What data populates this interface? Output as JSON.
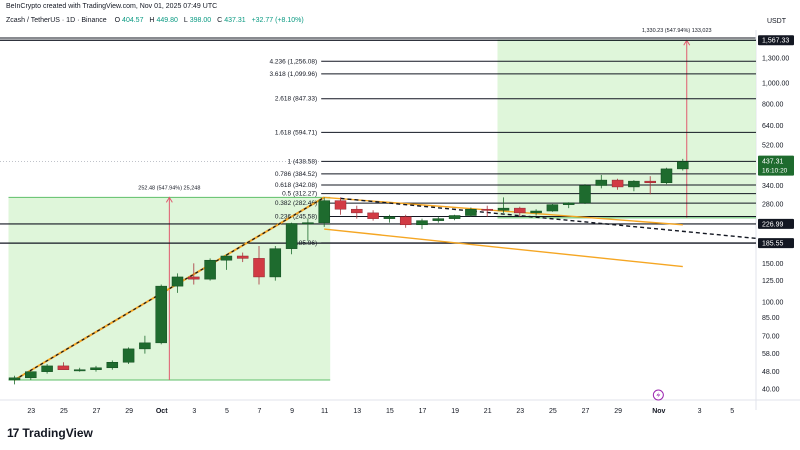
{
  "header": {
    "credit": "BeInCrypto created with TradingView.com, Nov 01, 2025 07:49 UTC",
    "symbol": "Zcash / TetherUS · 1D · Binance",
    "open_label": "O",
    "open": "404.57",
    "high_label": "H",
    "high": "449.80",
    "low_label": "L",
    "low": "398.00",
    "close_label": "C",
    "close": "437.31",
    "change": "+32.77 (+8.10%)"
  },
  "currency": "USDT",
  "branding": {
    "logo": "17",
    "name": "TradingView"
  },
  "colors": {
    "up": "#1e6b2e",
    "down": "#d23a44",
    "zone": "#d9f5d3",
    "trend_orange": "#f5a623",
    "measure": "#e05a6e",
    "fib_line": "#131722"
  },
  "chart_data": {
    "type": "candlestick",
    "scale": "log",
    "ylim": [
      38,
      1700
    ],
    "x_dates_start": "2025-09-22",
    "x_ticks": [
      "23",
      "25",
      "27",
      "29",
      "Oct",
      "3",
      "5",
      "7",
      "9",
      "11",
      "13",
      "15",
      "17",
      "19",
      "21",
      "23",
      "25",
      "27",
      "29",
      "Nov",
      "3",
      "5"
    ],
    "y_ticks": [
      "1,300.00",
      "1,000.00",
      "800.00",
      "640.00",
      "520.00",
      "340.00",
      "280.00",
      "150.00",
      "125.00",
      "100.00",
      "85.00",
      "70.00",
      "58.00",
      "48.00",
      "40.00"
    ],
    "candles": [
      {
        "o": 44,
        "h": 46,
        "l": 42,
        "c": 45
      },
      {
        "o": 45,
        "h": 48,
        "l": 44,
        "c": 48
      },
      {
        "o": 48,
        "h": 52,
        "l": 47,
        "c": 51
      },
      {
        "o": 51,
        "h": 53,
        "l": 49,
        "c": 49
      },
      {
        "o": 49,
        "h": 50,
        "l": 48,
        "c": 49
      },
      {
        "o": 49,
        "h": 51,
        "l": 48,
        "c": 50
      },
      {
        "o": 50,
        "h": 54,
        "l": 49,
        "c": 53
      },
      {
        "o": 53,
        "h": 62,
        "l": 52,
        "c": 61
      },
      {
        "o": 61,
        "h": 70,
        "l": 58,
        "c": 65
      },
      {
        "o": 65,
        "h": 120,
        "l": 64,
        "c": 118
      },
      {
        "o": 118,
        "h": 135,
        "l": 110,
        "c": 130
      },
      {
        "o": 130,
        "h": 150,
        "l": 120,
        "c": 127
      },
      {
        "o": 127,
        "h": 158,
        "l": 125,
        "c": 155
      },
      {
        "o": 155,
        "h": 165,
        "l": 140,
        "c": 162
      },
      {
        "o": 162,
        "h": 168,
        "l": 152,
        "c": 158
      },
      {
        "o": 158,
        "h": 180,
        "l": 120,
        "c": 130
      },
      {
        "o": 130,
        "h": 180,
        "l": 125,
        "c": 175
      },
      {
        "o": 175,
        "h": 230,
        "l": 165,
        "c": 228
      },
      {
        "o": 228,
        "h": 240,
        "l": 190,
        "c": 230
      },
      {
        "o": 230,
        "h": 300,
        "l": 220,
        "c": 290
      },
      {
        "o": 290,
        "h": 300,
        "l": 250,
        "c": 265
      },
      {
        "o": 265,
        "h": 275,
        "l": 240,
        "c": 255
      },
      {
        "o": 255,
        "h": 262,
        "l": 235,
        "c": 240
      },
      {
        "o": 240,
        "h": 250,
        "l": 230,
        "c": 245
      },
      {
        "o": 245,
        "h": 250,
        "l": 218,
        "c": 225
      },
      {
        "o": 225,
        "h": 240,
        "l": 215,
        "c": 235
      },
      {
        "o": 235,
        "h": 245,
        "l": 230,
        "c": 240
      },
      {
        "o": 240,
        "h": 250,
        "l": 236,
        "c": 248
      },
      {
        "o": 248,
        "h": 270,
        "l": 245,
        "c": 265
      },
      {
        "o": 265,
        "h": 275,
        "l": 245,
        "c": 262
      },
      {
        "o": 262,
        "h": 300,
        "l": 255,
        "c": 268
      },
      {
        "o": 268,
        "h": 272,
        "l": 245,
        "c": 255
      },
      {
        "o": 255,
        "h": 265,
        "l": 248,
        "c": 260
      },
      {
        "o": 260,
        "h": 280,
        "l": 258,
        "c": 278
      },
      {
        "o": 278,
        "h": 285,
        "l": 268,
        "c": 283
      },
      {
        "o": 283,
        "h": 345,
        "l": 280,
        "c": 340
      },
      {
        "o": 340,
        "h": 380,
        "l": 330,
        "c": 360
      },
      {
        "o": 360,
        "h": 365,
        "l": 325,
        "c": 335
      },
      {
        "o": 335,
        "h": 360,
        "l": 320,
        "c": 356
      },
      {
        "o": 356,
        "h": 375,
        "l": 310,
        "c": 350
      },
      {
        "o": 350,
        "h": 410,
        "l": 345,
        "c": 405
      },
      {
        "o": 405,
        "h": 450,
        "l": 398,
        "c": 437.31
      }
    ],
    "fib_levels": [
      {
        "label": "4.236 (1,256.08)",
        "value": 1256.08
      },
      {
        "label": "3.618 (1,099.96)",
        "value": 1099.96
      },
      {
        "label": "2.618 (847.33)",
        "value": 847.33
      },
      {
        "label": "1.618 (594.71)",
        "value": 594.71
      },
      {
        "label": "1 (438.58)",
        "value": 438.58
      },
      {
        "label": "0.786 (384.52)",
        "value": 384.52
      },
      {
        "label": "0.618 (342.08)",
        "value": 342.08
      },
      {
        "label": "0.5 (312.27)",
        "value": 312.27
      },
      {
        "label": "0.382 (282.46)",
        "value": 282.46
      },
      {
        "label": "0.236 (245.58)",
        "value": 245.58
      },
      {
        "label": "0 (185.96)",
        "value": 185.96
      }
    ],
    "hlines": [
      {
        "label": "1,567.33",
        "value": 1567.33,
        "tag": "dark"
      },
      {
        "label": "226.99",
        "value": 226.99,
        "tag": "dark"
      },
      {
        "label": "185.55",
        "value": 185.55,
        "tag": "dark"
      }
    ],
    "price_tag": {
      "price": "437.31",
      "countdown": "16:10:20",
      "value": 437.31
    },
    "zones": [
      {
        "label": "252.48 (547.94%) 25,248",
        "from_index": 0,
        "to_index": 19,
        "low": 44,
        "high": 300
      },
      {
        "label": "1,330.23 (547.94%) 133,023",
        "from_index": 30,
        "to_index": 48,
        "low": 242,
        "high": 1567.33
      }
    ],
    "trendlines": [
      {
        "style": "orange-dashed",
        "from": {
          "i": 0,
          "v": 44
        },
        "to": {
          "i": 19,
          "v": 300
        }
      },
      {
        "style": "orange",
        "from": {
          "i": 19,
          "v": 300
        },
        "to": {
          "i": 41,
          "v": 225
        }
      },
      {
        "style": "orange",
        "from": {
          "i": 19,
          "v": 215
        },
        "to": {
          "i": 41,
          "v": 145
        }
      },
      {
        "style": "black-dashed",
        "from": {
          "i": 20,
          "v": 297
        },
        "to": {
          "i": 48,
          "v": 195
        }
      }
    ]
  }
}
